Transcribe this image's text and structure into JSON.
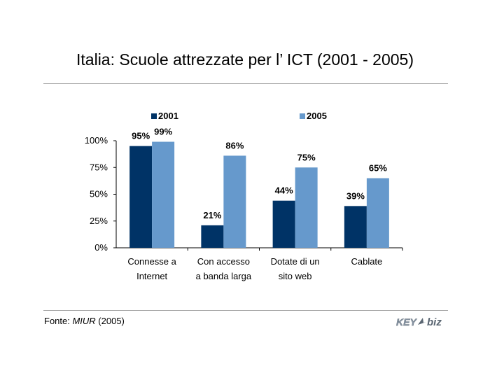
{
  "title": "Italia: Scuole attrezzate per l’ ICT (2001 - 2005)",
  "source": {
    "prefix": "Fonte: ",
    "name": "MIUR",
    "suffix": " (2005)"
  },
  "logo_text": "KEY4biz",
  "chart_data": {
    "type": "bar",
    "categories": [
      [
        "Connesse a",
        "Internet"
      ],
      [
        "Con accesso",
        "a banda larga"
      ],
      [
        "Dotate di un",
        "sito web"
      ],
      [
        "Cablate"
      ]
    ],
    "series": [
      {
        "name": "2001",
        "color": "#003366",
        "values": [
          95,
          21,
          44,
          39
        ],
        "labels": [
          "95%",
          "21%",
          "44%",
          "39%"
        ]
      },
      {
        "name": "2005",
        "color": "#6699cc",
        "values": [
          99,
          86,
          75,
          65
        ],
        "labels": [
          "99%",
          "86%",
          "75%",
          "65%"
        ]
      }
    ],
    "yticks": [
      "0%",
      "25%",
      "50%",
      "75%",
      "100%"
    ],
    "ylim": [
      0,
      100
    ],
    "legend": "top",
    "grid": false
  }
}
